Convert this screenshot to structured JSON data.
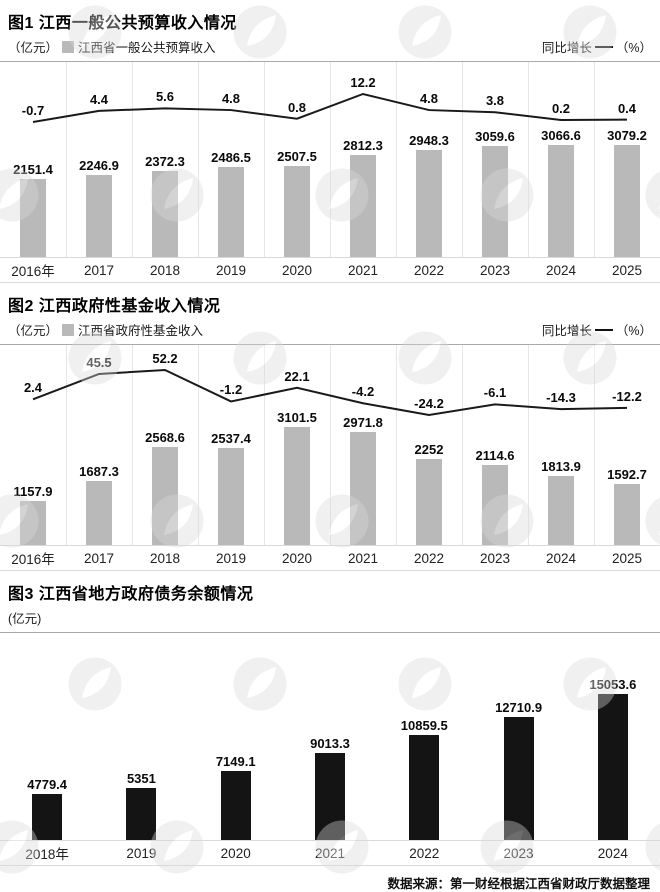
{
  "chart_data": [
    {
      "type": "bar+line",
      "title": "图1 江西一般公共预算收入情况",
      "unit_label": "（亿元）",
      "categories": [
        "2016年",
        "2017",
        "2018",
        "2019",
        "2020",
        "2021",
        "2022",
        "2023",
        "2024",
        "2025"
      ],
      "bar_series": {
        "name": "江西省一般公共预算收入",
        "color": "#b9b9b9",
        "values": [
          2151.4,
          2246.9,
          2372.3,
          2486.5,
          2507.5,
          2812.3,
          2948.3,
          3059.6,
          3066.6,
          3079.2
        ]
      },
      "line_series": {
        "name": "同比增长",
        "unit": "（%）",
        "color": "#1a1a1a",
        "values": [
          -0.7,
          4.4,
          5.6,
          4.8,
          0.8,
          12.2,
          4.8,
          3.8,
          0.2,
          0.4
        ]
      },
      "ylim": [
        0,
        3500
      ],
      "grid": "column-separators",
      "legend_position": "top"
    },
    {
      "type": "bar+line",
      "title": "图2 江西政府性基金收入情况",
      "unit_label": "（亿元）",
      "categories": [
        "2016年",
        "2017",
        "2018",
        "2019",
        "2020",
        "2021",
        "2022",
        "2023",
        "2024",
        "2025"
      ],
      "bar_series": {
        "name": "江西省政府性基金收入",
        "color": "#b9b9b9",
        "values": [
          1157.9,
          1687.3,
          2568.6,
          2537.4,
          3101.5,
          2971.8,
          2252,
          2114.6,
          1813.9,
          1592.7
        ]
      },
      "line_series": {
        "name": "同比增长",
        "unit": "（%）",
        "color": "#1a1a1a",
        "values": [
          2.4,
          45.5,
          52.2,
          -1.2,
          22.1,
          -4.2,
          -24.2,
          -6.1,
          -14.3,
          -12.2
        ]
      },
      "ylim": [
        0,
        3500
      ],
      "grid": "column-separators",
      "legend_position": "top"
    },
    {
      "type": "bar",
      "title": "图3 江西省地方政府债务余额情况",
      "unit_label": "(亿元)",
      "categories": [
        "2018年",
        "2019",
        "2020",
        "2021",
        "2022",
        "2023",
        "2024"
      ],
      "bar_series": {
        "color": "#141414",
        "values": [
          4779.4,
          5351,
          7149.1,
          9013.3,
          10859.5,
          12710.9,
          15053.6
        ]
      },
      "ylim": [
        0,
        16000
      ],
      "grid": "none",
      "legend_position": "none"
    }
  ],
  "footer": {
    "source": "数据来源：第一财经根据江西省财政厅数据整理"
  }
}
